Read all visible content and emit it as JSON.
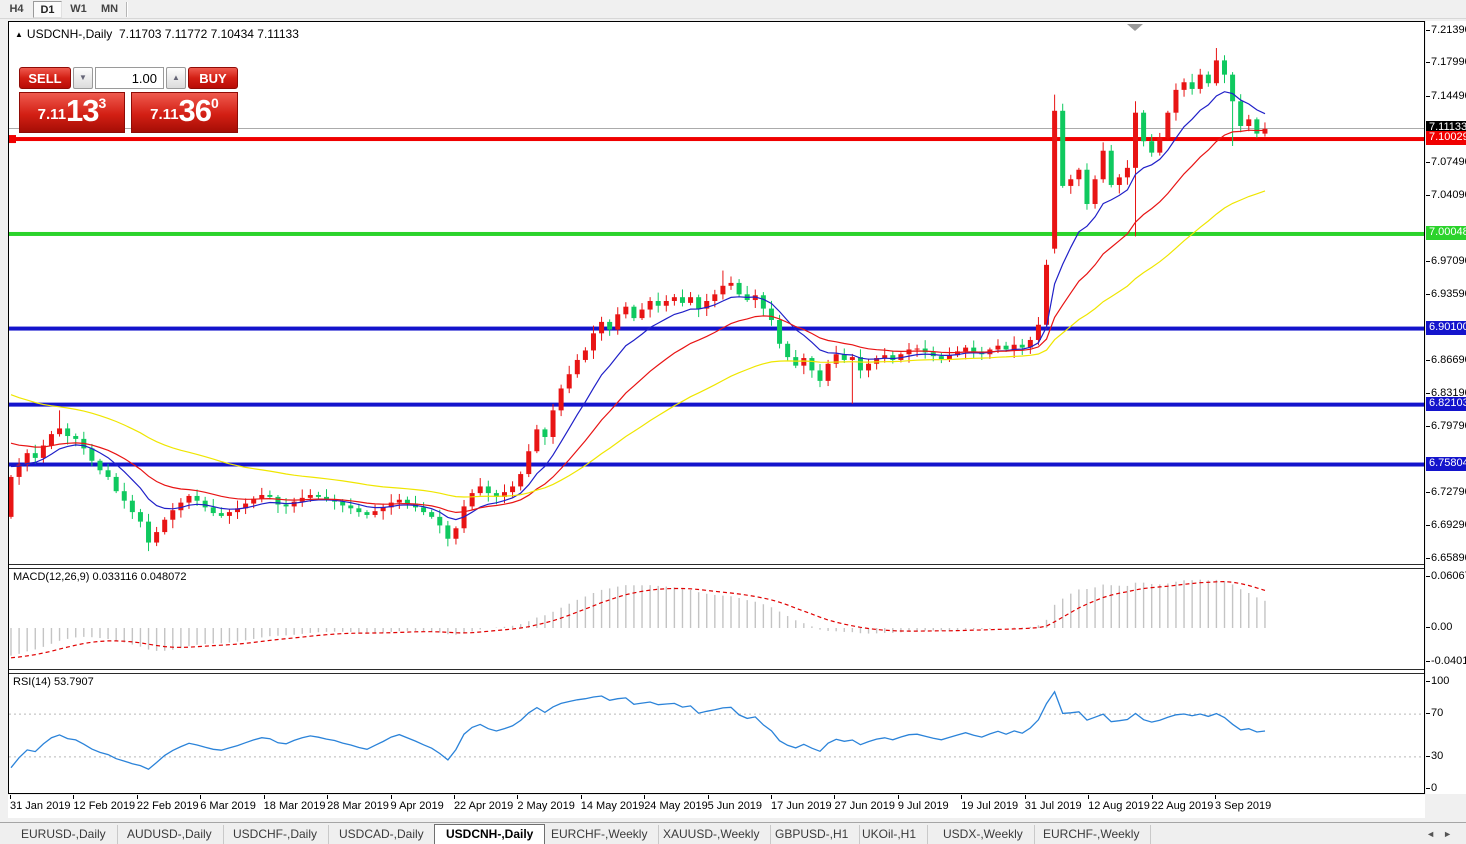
{
  "toolbar": {
    "timeframes": [
      {
        "label": "H4",
        "active": false
      },
      {
        "label": "D1",
        "active": true
      },
      {
        "label": "W1",
        "active": false
      },
      {
        "label": "MN",
        "active": false
      }
    ]
  },
  "chart_header": {
    "collapse_icon": "▲",
    "symbol": "USDCNH-,Daily",
    "ohlc": "7.11703 7.11772 7.10434 7.11133"
  },
  "trade_panel": {
    "sell_label": "SELL",
    "buy_label": "BUY",
    "volume": "1.00",
    "spinner_down": "▼",
    "spinner_up": "▲",
    "sell_price_prefix": "7.11",
    "sell_price_big": "13",
    "sell_price_sup": "3",
    "buy_price_prefix": "7.11",
    "buy_price_big": "36",
    "buy_price_sup": "0"
  },
  "indicator_labels": {
    "macd": "MACD(12,26,9) 0.033116 0.048072",
    "rsi": "RSI(14) 53.7907"
  },
  "price_axis": {
    "ticks": [
      {
        "label": "7.21390",
        "value": 7.2139
      },
      {
        "label": "7.17990",
        "value": 7.1799
      },
      {
        "label": "7.14490",
        "value": 7.1449
      },
      {
        "label": "7.07490",
        "value": 7.0749
      },
      {
        "label": "7.04090",
        "value": 7.0409
      },
      {
        "label": "6.97090",
        "value": 6.9709
      },
      {
        "label": "6.93590",
        "value": 6.9359
      },
      {
        "label": "6.86690",
        "value": 6.8669
      },
      {
        "label": "6.83190",
        "value": 6.8319
      },
      {
        "label": "6.79790",
        "value": 6.7979
      },
      {
        "label": "6.72790",
        "value": 6.7279
      },
      {
        "label": "6.69290",
        "value": 6.6929
      },
      {
        "label": "6.65890",
        "value": 6.6589
      }
    ],
    "badges": [
      {
        "label": "7.11133",
        "value": 7.11133,
        "bg": "#000000"
      },
      {
        "label": "7.10029",
        "value": 7.10029,
        "bg": "#f00000"
      },
      {
        "label": "7.00048",
        "value": 7.00048,
        "bg": "#2bd32b"
      },
      {
        "label": "6.90100",
        "value": 6.901,
        "bg": "#1414cc"
      },
      {
        "label": "6.82103",
        "value": 6.82103,
        "bg": "#1414cc"
      },
      {
        "label": "6.75804",
        "value": 6.75804,
        "bg": "#1414cc"
      }
    ]
  },
  "macd_axis": {
    "ticks": [
      {
        "label": "0.060674",
        "value": 0.060674
      },
      {
        "label": "0.00",
        "value": 0
      },
      {
        "label": "-0.040152",
        "value": -0.040152
      }
    ]
  },
  "rsi_axis": {
    "ticks": [
      {
        "label": "100",
        "value": 100
      },
      {
        "label": "70",
        "value": 70
      },
      {
        "label": "30",
        "value": 30
      },
      {
        "label": "0",
        "value": 0
      }
    ]
  },
  "x_axis": {
    "labels": [
      "31 Jan 2019",
      "12 Feb 2019",
      "22 Feb 2019",
      "6 Mar 2019",
      "18 Mar 2019",
      "28 Mar 2019",
      "9 Apr 2019",
      "22 Apr 2019",
      "2 May 2019",
      "14 May 2019",
      "24 May 2019",
      "5 Jun 2019",
      "17 Jun 2019",
      "27 Jun 2019",
      "9 Jul 2019",
      "19 Jul 2019",
      "31 Jul 2019",
      "12 Aug 2019",
      "22 Aug 2019",
      "3 Sep 2019"
    ]
  },
  "tabs": {
    "items": [
      {
        "label": "EURUSD-,Daily",
        "active": false
      },
      {
        "label": "AUDUSD-,Daily",
        "active": false
      },
      {
        "label": "USDCHF-,Daily",
        "active": false
      },
      {
        "label": "USDCAD-,Daily",
        "active": false
      },
      {
        "label": "USDCNH-,Daily",
        "active": true
      },
      {
        "label": "EURCHF-,Weekly",
        "active": false
      },
      {
        "label": "XAUUSD-,Weekly",
        "active": false
      },
      {
        "label": "GBPUSD-,H1",
        "active": false
      },
      {
        "label": "UKOil-,H1",
        "active": false
      },
      {
        "label": "USDX-,Weekly",
        "active": false
      },
      {
        "label": "EURCHF-,Weekly",
        "active": false
      }
    ],
    "scroll_left": "◄",
    "scroll_right": "►"
  },
  "chart_data": {
    "type": "candlestick",
    "symbol": "USDCNH",
    "timeframe": "Daily",
    "ylim": [
      6.6535,
      7.2235
    ],
    "current_price": 7.11133,
    "up_color": "#e81414",
    "down_color": "#0fc95f",
    "note": "red candles = up, green candles = down (CN convention)",
    "first_open": 6.703,
    "warmup_closes": [
      6.96,
      6.95,
      6.945,
      6.93,
      6.92,
      6.935,
      6.92,
      6.9,
      6.89,
      6.88,
      6.885,
      6.87,
      6.855,
      6.86,
      6.845,
      6.83,
      6.835,
      6.82,
      6.81,
      6.815,
      6.8,
      6.79,
      6.795,
      6.785,
      6.775,
      6.78,
      6.77,
      6.765,
      6.77,
      6.76,
      6.755,
      6.76,
      6.75,
      6.748,
      6.752,
      6.749
    ],
    "closes": [
      6.745,
      6.758,
      6.77,
      6.765,
      6.778,
      6.79,
      6.796,
      6.788,
      6.785,
      6.775,
      6.762,
      6.752,
      6.745,
      6.73,
      6.72,
      6.708,
      6.698,
      6.676,
      6.687,
      6.7,
      6.71,
      6.718,
      6.725,
      6.72,
      6.713,
      6.707,
      6.704,
      6.708,
      6.712,
      6.717,
      6.722,
      6.726,
      6.724,
      6.716,
      6.714,
      6.719,
      6.723,
      6.726,
      6.724,
      6.721,
      6.719,
      6.715,
      6.712,
      6.708,
      6.705,
      6.709,
      6.713,
      6.718,
      6.721,
      6.717,
      6.713,
      6.708,
      6.703,
      6.694,
      6.68,
      6.691,
      6.714,
      6.728,
      6.735,
      6.728,
      6.724,
      6.729,
      6.735,
      6.748,
      6.772,
      6.795,
      6.787,
      6.815,
      6.838,
      6.853,
      6.868,
      6.878,
      6.896,
      6.908,
      6.9,
      6.916,
      6.924,
      6.912,
      6.921,
      6.93,
      6.925,
      6.93,
      6.934,
      6.928,
      6.934,
      6.922,
      6.93,
      6.937,
      6.946,
      6.949,
      6.937,
      6.931,
      6.936,
      6.922,
      6.91,
      6.885,
      6.871,
      6.862,
      6.87,
      6.857,
      6.846,
      6.864,
      6.874,
      6.868,
      6.871,
      6.857,
      6.864,
      6.87,
      6.873,
      6.868,
      6.874,
      6.879,
      6.88,
      6.876,
      6.872,
      6.869,
      6.873,
      6.877,
      6.881,
      6.877,
      6.874,
      6.879,
      6.883,
      6.879,
      6.884,
      6.881,
      6.889,
      6.905,
      6.968,
      7.13,
      7.051,
      7.058,
      7.068,
      7.032,
      7.058,
      7.088,
      7.052,
      7.06,
      7.07,
      7.128,
      7.098,
      7.086,
      7.102,
      7.128,
      7.152,
      7.16,
      7.153,
      7.168,
      7.159,
      7.183,
      7.168,
      7.14,
      7.114,
      7.121,
      7.106,
      7.111
    ],
    "overrides": {
      "6": {
        "high": 6.815
      },
      "17": {
        "low": 6.667
      },
      "54": {
        "low": 6.672
      },
      "88": {
        "high": 6.962
      },
      "104": {
        "low": 6.822
      },
      "129": {
        "open": 6.985,
        "low": 6.98,
        "high": 7.147
      },
      "139": {
        "low": 6.998,
        "high": 7.14
      },
      "149": {
        "high": 7.196
      },
      "151": {
        "low": 7.093
      }
    },
    "moving_averages": [
      {
        "type": "ema",
        "period": 9,
        "color": "#2020c8"
      },
      {
        "type": "ema",
        "period": 20,
        "color": "#e81414"
      },
      {
        "type": "ema",
        "period": 45,
        "color": "#efe600"
      }
    ],
    "hlines": [
      {
        "value": 7.10029,
        "color": "#f00000"
      },
      {
        "value": 7.00048,
        "color": "#2bd32b"
      },
      {
        "value": 6.901,
        "color": "#1414cc"
      },
      {
        "value": 6.82103,
        "color": "#1414cc"
      },
      {
        "value": 6.75804,
        "color": "#1414cc"
      }
    ],
    "macd": {
      "fast": 12,
      "slow": 26,
      "signal": 9,
      "value": 0.033116,
      "signal_value": 0.048072,
      "histogram_color": "#c4c4c4",
      "signal_color": "#e00000",
      "range": [
        -0.040152,
        0.060674
      ]
    },
    "rsi": {
      "period": 14,
      "value": 53.7907,
      "levels": [
        70,
        30
      ],
      "color": "#2b83d9",
      "range": [
        0,
        100
      ]
    }
  }
}
